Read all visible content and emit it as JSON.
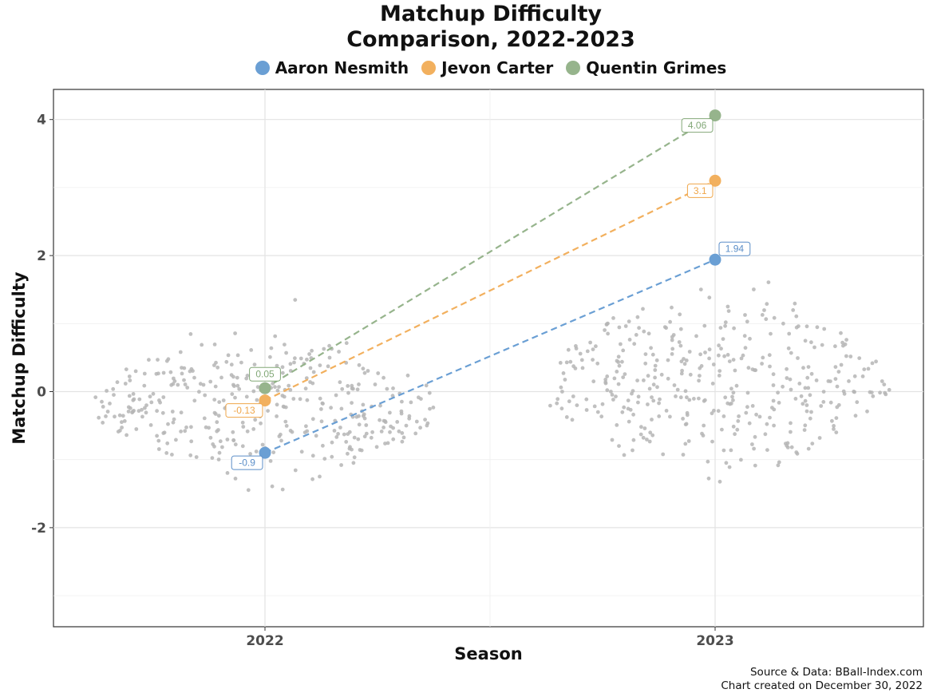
{
  "chart_data": {
    "type": "scatter",
    "title_lines": [
      "Matchup Difficulty",
      "Comparison, 2022-2023"
    ],
    "xlabel": "Season",
    "ylabel": "Matchup Difficulty",
    "categories": [
      "2022",
      "2023"
    ],
    "y_ticks": [
      "4",
      "2",
      "0",
      "-2"
    ],
    "ylim": [
      -3.4,
      4.4
    ],
    "grid": true,
    "legend_position": "top",
    "series": [
      {
        "name": "Aaron Nesmith",
        "color": "#6a9fd4",
        "label_color": "#5b8ec8",
        "values": [
          -0.9,
          1.94
        ],
        "labels": [
          "-0.9",
          "1.94"
        ]
      },
      {
        "name": "Jevon Carter",
        "color": "#f2b05e",
        "label_color": "#efa64a",
        "values": [
          -0.13,
          3.1
        ],
        "labels": [
          "-0.13",
          "3.1"
        ]
      },
      {
        "name": "Quentin Grimes",
        "color": "#96b48c",
        "label_color": "#82a877",
        "values": [
          0.05,
          4.06
        ],
        "labels": [
          "0.05",
          "4.06"
        ]
      }
    ],
    "background_points": {
      "color": "#b5b5b5",
      "description_count_per_season": 380
    }
  },
  "source_lines": [
    "Source & Data: BBall-Index.com",
    "Chart created on December 30, 2022"
  ]
}
